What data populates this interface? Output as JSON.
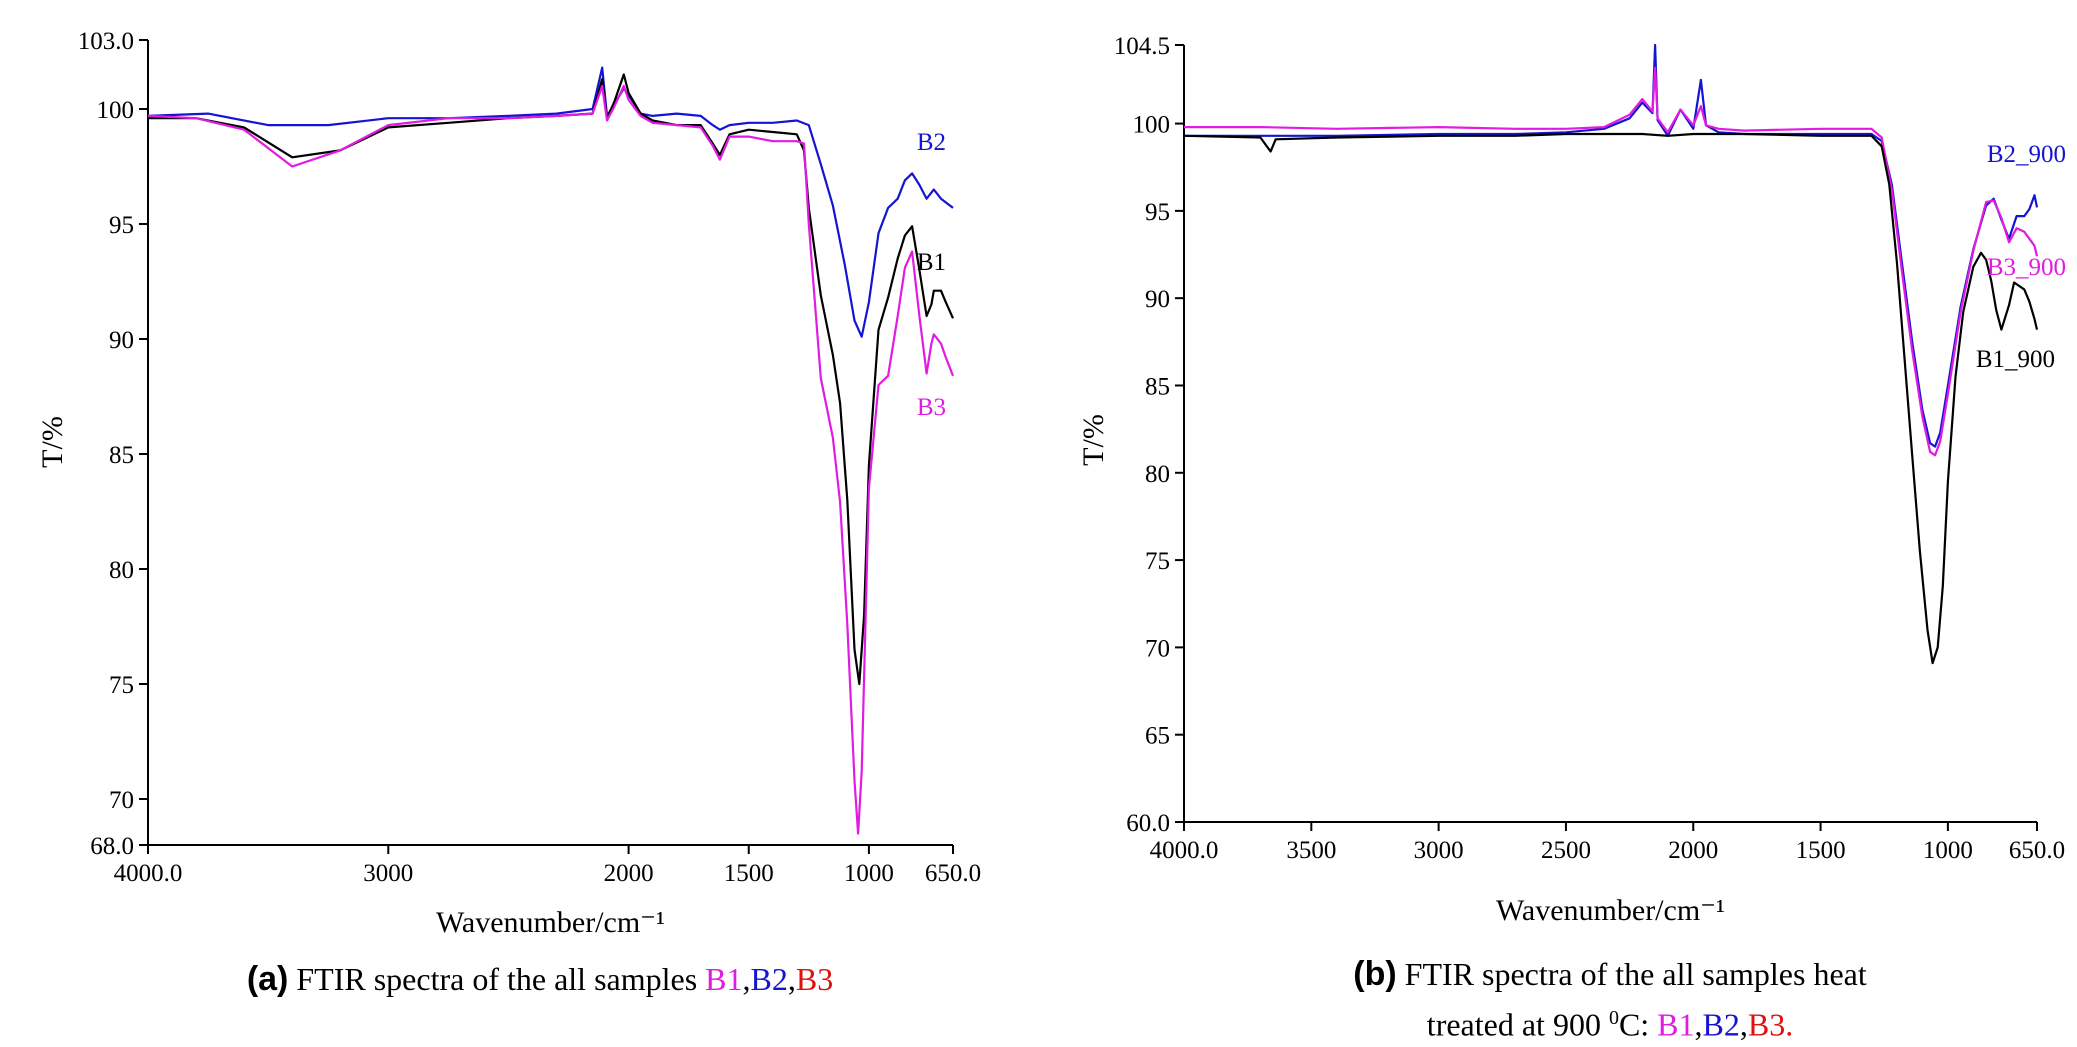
{
  "figure": {
    "caption_a": {
      "tag": "(a)",
      "text": "FTIR spectra of the all samples",
      "samples": [
        "B1",
        ",",
        "B2",
        ",",
        "B3"
      ]
    },
    "caption_b": {
      "tag": "(b)",
      "line1": "FTIR spectra of the all samples heat",
      "line2_prefix": "treated at 900",
      "degree": "0",
      "line2_unit": "C: ",
      "samples": [
        "B1",
        ",",
        "B2",
        ",",
        "B3."
      ]
    }
  },
  "colors": {
    "B1": "#000000",
    "B2": "#1414d2",
    "B3": "#e11be1",
    "caption_B1": "#e11be1",
    "caption_B2": "#1414d2",
    "caption_B3": "#e01010"
  },
  "chart_data": [
    {
      "type": "line",
      "xlabel": "Wavenumber/cm⁻¹",
      "ylabel": "T/%",
      "xlim": [
        4000.0,
        650.0
      ],
      "ylim": [
        68.0,
        103.0
      ],
      "x_reversed": true,
      "x_ticks": [
        "4000.0",
        "3000",
        "2000",
        "1500",
        "1000",
        "650.0"
      ],
      "x_tick_values": [
        4000,
        3000,
        2000,
        1500,
        1000,
        650
      ],
      "y_ticks": [
        "68.0",
        "70",
        "75",
        "80",
        "85",
        "90",
        "95",
        "100",
        "103.0"
      ],
      "y_tick_values": [
        68,
        70,
        75,
        80,
        85,
        90,
        95,
        100,
        103
      ],
      "grid": false,
      "legend": "inline labels at right",
      "series": [
        {
          "name": "B2",
          "x": [
            4000,
            3750,
            3500,
            3250,
            3000,
            2750,
            2500,
            2300,
            2150,
            2110,
            2090,
            2060,
            2020,
            2000,
            1950,
            1900,
            1800,
            1700,
            1650,
            1620,
            1580,
            1500,
            1400,
            1300,
            1250,
            1200,
            1150,
            1100,
            1060,
            1030,
            1000,
            960,
            920,
            880,
            850,
            820,
            790,
            760,
            730,
            700,
            650
          ],
          "y": [
            99.7,
            99.8,
            99.3,
            99.3,
            99.6,
            99.6,
            99.7,
            99.8,
            100.0,
            101.8,
            99.7,
            100.2,
            100.9,
            100.6,
            99.8,
            99.7,
            99.8,
            99.7,
            99.3,
            99.1,
            99.3,
            99.4,
            99.4,
            99.5,
            99.3,
            97.6,
            95.8,
            93.2,
            90.8,
            90.1,
            91.6,
            94.6,
            95.7,
            96.1,
            96.9,
            97.2,
            96.7,
            96.1,
            96.5,
            96.1,
            95.7
          ]
        },
        {
          "name": "B1",
          "x": [
            4000,
            3800,
            3600,
            3400,
            3200,
            3000,
            2750,
            2500,
            2300,
            2150,
            2110,
            2090,
            2060,
            2020,
            2000,
            1950,
            1900,
            1800,
            1700,
            1650,
            1620,
            1580,
            1500,
            1400,
            1300,
            1270,
            1250,
            1200,
            1150,
            1120,
            1090,
            1060,
            1040,
            1020,
            1000,
            960,
            920,
            880,
            850,
            820,
            790,
            760,
            740,
            730,
            700,
            680,
            650
          ],
          "y": [
            99.6,
            99.6,
            99.2,
            97.9,
            98.2,
            99.2,
            99.4,
            99.6,
            99.7,
            99.8,
            101.3,
            99.6,
            100.3,
            101.5,
            100.7,
            99.8,
            99.5,
            99.3,
            99.3,
            98.5,
            98.0,
            98.9,
            99.1,
            99.0,
            98.9,
            98.2,
            95.7,
            91.9,
            89.3,
            87.2,
            83.0,
            76.5,
            75.0,
            78.0,
            84.5,
            90.4,
            91.8,
            93.5,
            94.5,
            94.9,
            93.0,
            91.0,
            91.5,
            92.1,
            92.1,
            91.6,
            90.9
          ]
        },
        {
          "name": "B3",
          "x": [
            4000,
            3800,
            3600,
            3400,
            3200,
            3000,
            2750,
            2500,
            2300,
            2150,
            2110,
            2090,
            2060,
            2020,
            2000,
            1950,
            1900,
            1800,
            1700,
            1650,
            1620,
            1580,
            1500,
            1400,
            1300,
            1270,
            1250,
            1200,
            1150,
            1120,
            1090,
            1060,
            1045,
            1030,
            1000,
            960,
            920,
            880,
            850,
            820,
            790,
            760,
            740,
            730,
            700,
            680,
            650
          ],
          "y": [
            99.7,
            99.6,
            99.1,
            97.5,
            98.2,
            99.3,
            99.6,
            99.6,
            99.7,
            99.8,
            101.0,
            99.5,
            100.1,
            101.0,
            100.4,
            99.7,
            99.4,
            99.3,
            99.2,
            98.4,
            97.8,
            98.8,
            98.8,
            98.6,
            98.6,
            98.5,
            95.0,
            88.3,
            85.7,
            82.9,
            77.6,
            70.8,
            68.5,
            71.2,
            83.5,
            88.0,
            88.4,
            91.0,
            93.1,
            93.8,
            91.0,
            88.5,
            89.8,
            90.2,
            89.8,
            89.2,
            88.4
          ]
        }
      ],
      "series_labels": [
        "B2",
        "B1",
        "B3"
      ]
    },
    {
      "type": "line",
      "xlabel": "Wavenumber/cm⁻¹",
      "ylabel": "T/%",
      "xlim": [
        4000.0,
        650.0
      ],
      "ylim": [
        60.0,
        104.5
      ],
      "x_reversed": true,
      "x_ticks": [
        "4000.0",
        "3500",
        "3000",
        "2500",
        "2000",
        "1500",
        "1000",
        "650.0"
      ],
      "x_tick_values": [
        4000,
        3500,
        3000,
        2500,
        2000,
        1500,
        1000,
        650
      ],
      "y_ticks": [
        "60.0",
        "65",
        "70",
        "75",
        "80",
        "85",
        "90",
        "95",
        "100",
        "104.5"
      ],
      "y_tick_values": [
        60,
        65,
        70,
        75,
        80,
        85,
        90,
        95,
        100,
        104.5
      ],
      "grid": false,
      "legend": "inline labels at right",
      "series": [
        {
          "name": "B2_900",
          "x": [
            4000,
            3700,
            3400,
            3000,
            2700,
            2500,
            2350,
            2250,
            2200,
            2160,
            2150,
            2140,
            2100,
            2050,
            2000,
            1970,
            1950,
            1900,
            1800,
            1500,
            1300,
            1260,
            1220,
            1180,
            1140,
            1100,
            1070,
            1050,
            1030,
            1000,
            950,
            900,
            850,
            820,
            790,
            760,
            730,
            700,
            680,
            660,
            650
          ],
          "y": [
            99.3,
            99.3,
            99.3,
            99.4,
            99.4,
            99.5,
            99.7,
            100.3,
            101.2,
            100.6,
            104.5,
            100.2,
            99.3,
            100.8,
            99.7,
            102.5,
            99.9,
            99.5,
            99.4,
            99.4,
            99.4,
            99.0,
            96.5,
            92.0,
            87.5,
            83.6,
            81.7,
            81.5,
            82.3,
            85.0,
            89.5,
            92.8,
            95.3,
            95.7,
            94.5,
            93.4,
            94.7,
            94.7,
            95.1,
            95.9,
            95.2
          ]
        },
        {
          "name": "B3_900",
          "x": [
            4000,
            3700,
            3400,
            3000,
            2700,
            2500,
            2350,
            2250,
            2200,
            2160,
            2150,
            2140,
            2100,
            2050,
            2000,
            1970,
            1950,
            1900,
            1800,
            1500,
            1300,
            1260,
            1220,
            1180,
            1140,
            1100,
            1070,
            1050,
            1030,
            1000,
            950,
            900,
            850,
            820,
            790,
            760,
            730,
            700,
            680,
            660,
            650
          ],
          "y": [
            99.8,
            99.8,
            99.7,
            99.8,
            99.7,
            99.7,
            99.8,
            100.5,
            101.4,
            100.7,
            103.2,
            100.3,
            99.5,
            100.8,
            99.9,
            101.0,
            99.9,
            99.7,
            99.6,
            99.7,
            99.7,
            99.2,
            96.2,
            91.5,
            87.0,
            83.2,
            81.2,
            81.0,
            81.8,
            84.5,
            89.2,
            92.7,
            95.5,
            95.6,
            94.6,
            93.2,
            94.0,
            93.8,
            93.4,
            93.0,
            92.4
          ]
        },
        {
          "name": "B1_900",
          "x": [
            4000,
            3700,
            3660,
            3640,
            3400,
            3000,
            2700,
            2500,
            2350,
            2200,
            2100,
            2000,
            1900,
            1800,
            1500,
            1300,
            1260,
            1230,
            1200,
            1170,
            1140,
            1110,
            1080,
            1060,
            1040,
            1020,
            1000,
            970,
            940,
            900,
            870,
            850,
            830,
            810,
            790,
            760,
            740,
            720,
            700,
            680,
            660,
            650
          ],
          "y": [
            99.3,
            99.2,
            98.4,
            99.1,
            99.2,
            99.3,
            99.3,
            99.4,
            99.4,
            99.4,
            99.3,
            99.4,
            99.4,
            99.4,
            99.3,
            99.3,
            98.7,
            96.5,
            92.0,
            86.5,
            81.0,
            75.5,
            71.0,
            69.1,
            70.0,
            73.5,
            79.5,
            85.5,
            89.2,
            91.8,
            92.6,
            92.2,
            91.0,
            89.3,
            88.2,
            89.6,
            90.9,
            90.7,
            90.5,
            89.8,
            88.8,
            88.2
          ]
        }
      ],
      "series_labels": [
        "B2_900",
        "B3_900",
        "B1_900"
      ]
    }
  ]
}
